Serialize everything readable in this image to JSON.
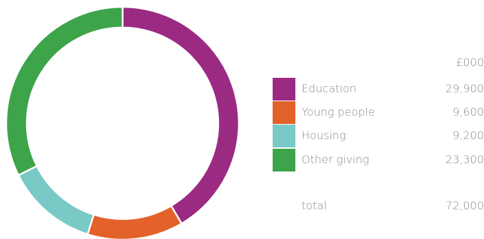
{
  "chart_data": {
    "type": "pie",
    "style": "donut",
    "unit_header": "£000",
    "series": [
      {
        "name": "Education",
        "value": 29900,
        "display": "29,900",
        "color": "#9b2a83"
      },
      {
        "name": "Young people",
        "value": 9600,
        "display": "9,600",
        "color": "#e3622a"
      },
      {
        "name": "Housing",
        "value": 9200,
        "display": "9,200",
        "color": "#79c9c7"
      },
      {
        "name": "Other giving",
        "value": 23300,
        "display": "23,300",
        "color": "#3ea44a"
      }
    ],
    "total_label": "total",
    "total_display": "72,000",
    "total_value": 72000,
    "legend_position": "right",
    "start_angle": "12 o'clock",
    "direction": "clockwise"
  }
}
